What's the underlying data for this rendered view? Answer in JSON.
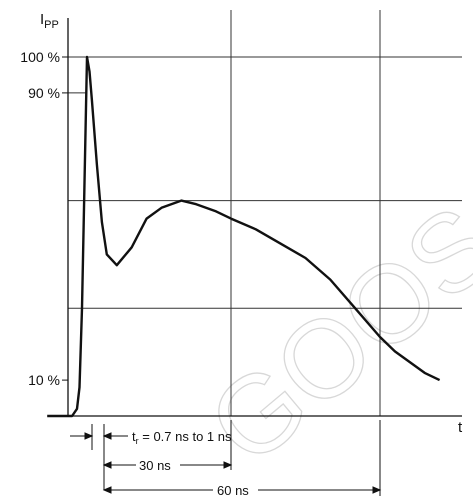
{
  "chart_data": {
    "type": "line",
    "ylabel_main": "I",
    "ylabel_sub": "PP",
    "xlabel": "t",
    "y_ticks": [
      {
        "label": "100 %",
        "value": 100
      },
      {
        "label": "90 %",
        "value": 90
      },
      {
        "label": "10 %",
        "value": 10
      }
    ],
    "grid_y_values": [
      100,
      60,
      30
    ],
    "grid_x_values": [
      30,
      60
    ],
    "xlim": [
      -7,
      72
    ],
    "ylim": [
      0,
      106
    ],
    "series": [
      {
        "x": [
          -7,
          -2,
          -1,
          -0.5,
          0,
          0.5,
          1,
          1.5,
          2,
          3,
          4,
          5,
          7,
          10,
          13,
          16,
          20,
          23,
          27,
          30,
          35,
          40,
          45,
          50,
          55,
          60,
          63,
          66,
          69,
          72
        ],
        "y": [
          0,
          0,
          2,
          8,
          30,
          65,
          100,
          96,
          88,
          70,
          54,
          45,
          42,
          47,
          55,
          58,
          60,
          59,
          57,
          55,
          52,
          48,
          44,
          38,
          30,
          22,
          18,
          15,
          12,
          10
        ]
      }
    ],
    "annotations": {
      "tr_sym": "t",
      "tr_sub": "r",
      "tr_text": " = 0.7 ns to 1 ns",
      "span_30": "30 ns",
      "span_60": "60 ns"
    }
  },
  "watermark": "GOOS"
}
